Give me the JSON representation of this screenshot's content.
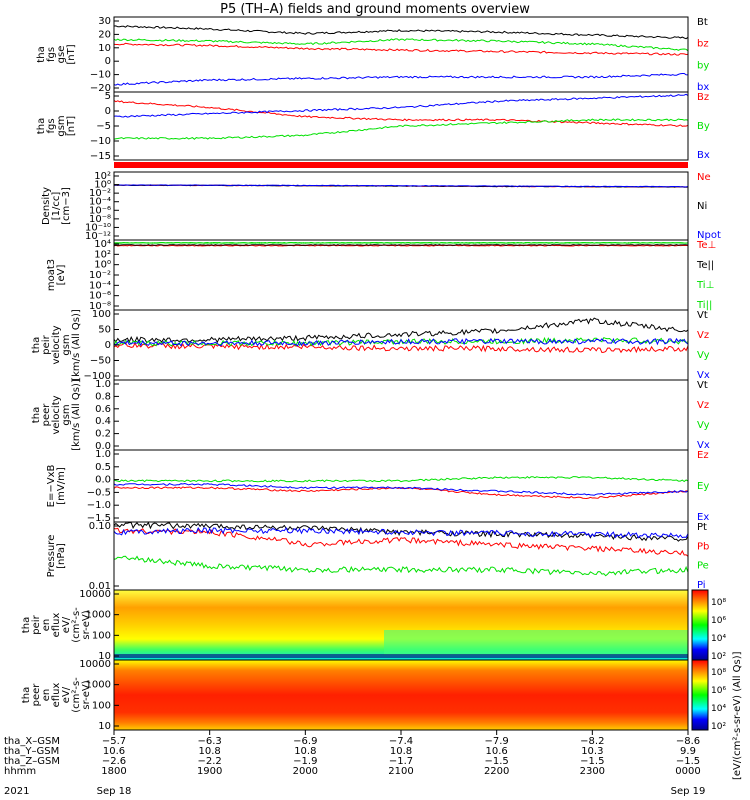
{
  "title": "P5 (TH–A) fields and ground moments overview",
  "colors": {
    "black": "#000000",
    "red": "#ff0000",
    "green": "#00e000",
    "blue": "#0000ff",
    "frame": "#000000"
  },
  "panels": [
    {
      "id": "fgs-gse",
      "ylabel": [
        "tha",
        "fgs",
        "gse",
        "[nT]"
      ],
      "yticks": [
        "30",
        "20",
        "10",
        "0",
        "−10",
        "−20"
      ],
      "legend": [
        {
          "t": "Bt",
          "c": "black"
        },
        {
          "t": "bz",
          "c": "red"
        },
        {
          "t": "by",
          "c": "green"
        },
        {
          "t": "bx",
          "c": "blue"
        }
      ]
    },
    {
      "id": "fgs-gsm",
      "ylabel": [
        "tha",
        "fgs",
        "gsm",
        "[nT]"
      ],
      "yticks": [
        "5",
        "0",
        "−5",
        "−10",
        "−15"
      ],
      "legend": [
        {
          "t": "Bz",
          "c": "red"
        },
        {
          "t": "By",
          "c": "green"
        },
        {
          "t": "Bx",
          "c": "blue"
        }
      ]
    },
    {
      "id": "density",
      "ylabel": [
        "Density",
        "[1/cc]",
        "[cm−3]"
      ],
      "yticks": [
        "10²",
        "10⁰",
        "10⁻²",
        "10⁻⁴",
        "10⁻⁶",
        "10⁻⁸",
        "10⁻¹⁰",
        "10⁻¹²"
      ],
      "legend": [
        {
          "t": "Ne",
          "c": "red"
        },
        {
          "t": "Ni",
          "c": "black"
        },
        {
          "t": "Npot",
          "c": "blue"
        }
      ]
    },
    {
      "id": "temp",
      "ylabel": [
        "moat3",
        "[eV]"
      ],
      "yticks": [
        "10⁴",
        "10²",
        "10⁰",
        "10⁻²",
        "10⁻⁴",
        "10⁻⁶",
        "10⁻⁸"
      ],
      "legend": [
        {
          "t": "Te⊥",
          "c": "red"
        },
        {
          "t": "Te||",
          "c": "black"
        },
        {
          "t": "Ti⊥",
          "c": "green"
        },
        {
          "t": "Ti||",
          "c": "green"
        }
      ]
    },
    {
      "id": "peir-vel",
      "ylabel": [
        "tha",
        "peir",
        "velocity",
        "gsm",
        "[km/s (All Qs)]"
      ],
      "yticks": [
        "100",
        "50",
        "0",
        "−50",
        "−100"
      ],
      "legend": [
        {
          "t": "Vt",
          "c": "black"
        },
        {
          "t": "Vz",
          "c": "red"
        },
        {
          "t": "Vy",
          "c": "green"
        },
        {
          "t": "Vx",
          "c": "blue"
        }
      ]
    },
    {
      "id": "peer-vel",
      "ylabel": [
        "tha",
        "peer",
        "velocity",
        "gsm",
        "[km/s (All Qs)]"
      ],
      "yticks": [
        "1.0",
        "0.8",
        "0.6",
        "0.4",
        "0.2",
        "0.0"
      ],
      "legend": [
        {
          "t": "Vt",
          "c": "black"
        },
        {
          "t": "Vz",
          "c": "red"
        },
        {
          "t": "Vy",
          "c": "green"
        },
        {
          "t": "Vx",
          "c": "blue"
        }
      ]
    },
    {
      "id": "efield",
      "ylabel": [
        "E=−VxB",
        "[mV/m]"
      ],
      "yticks": [
        "1.0",
        "0.5",
        "0.0",
        "−0.5",
        "−1.0",
        "−1.5"
      ],
      "legend": [
        {
          "t": "Ez",
          "c": "red"
        },
        {
          "t": "Ey",
          "c": "green"
        },
        {
          "t": "Ex",
          "c": "blue"
        }
      ]
    },
    {
      "id": "pressure",
      "ylabel": [
        "Pressure",
        "[nPa]"
      ],
      "yticks": [
        "0.10",
        "0.01"
      ],
      "legend": [
        {
          "t": "Pt",
          "c": "black"
        },
        {
          "t": "Pb",
          "c": "red"
        },
        {
          "t": "Pe",
          "c": "green"
        },
        {
          "t": "Pi",
          "c": "blue"
        }
      ]
    },
    {
      "id": "peir-eflux",
      "ylabel": [
        "tha",
        "peir",
        "en",
        "eflux",
        "eV/",
        "(cm²-s-",
        "sr-eV)"
      ],
      "yticks": [
        "10000",
        "1000",
        "100",
        "10"
      ],
      "colorbar": [
        "10⁸",
        "10⁶",
        "10⁴",
        "10²"
      ]
    },
    {
      "id": "peer-eflux",
      "ylabel": [
        "tha",
        "peer",
        "en",
        "eflux",
        "eV/",
        "(cm²-s-",
        "sr-eV)"
      ],
      "yticks": [
        "10000",
        "1000",
        "100",
        "10"
      ],
      "colorbar": [
        "10⁸",
        "10⁶",
        "10⁴",
        "10²"
      ]
    }
  ],
  "colorbar_label": "[eV/(cm²-s-sr-eV) (All Qs)]",
  "xaxis": {
    "rows": [
      {
        "label": "tha_X–GSM",
        "values": [
          "−5.7",
          "−6.3",
          "−6.9",
          "−7.4",
          "−7.9",
          "−8.2",
          "−8.6"
        ]
      },
      {
        "label": "tha_Y–GSM",
        "values": [
          "10.6",
          "10.8",
          "10.8",
          "10.8",
          "10.6",
          "10.3",
          "9.9"
        ]
      },
      {
        "label": "tha_Z–GSM",
        "values": [
          "−2.6",
          "−2.2",
          "−1.9",
          "−1.7",
          "−1.5",
          "−1.5",
          "−1.5"
        ]
      },
      {
        "label": "hhmm",
        "values": [
          "1800",
          "1900",
          "2000",
          "2100",
          "2200",
          "2300",
          "0000"
        ]
      }
    ],
    "year": "2021",
    "date_start": "Sep 18",
    "date_end": "Sep 19"
  },
  "chart_data": {
    "type": "line",
    "title": "P5 (TH–A) fields and ground moments overview",
    "x": [
      "1800",
      "1900",
      "2000",
      "2100",
      "2200",
      "2300",
      "0000"
    ],
    "xlim": [
      "2021-09-18 18:00",
      "2021-09-19 00:00"
    ],
    "panels": [
      {
        "id": "fgs-gse",
        "ylim": [
          -20,
          30
        ],
        "series": [
          {
            "name": "Bt",
            "color": "black",
            "values": [
              24,
              22,
              19,
              21,
              20,
              18,
              16
            ]
          },
          {
            "name": "bz",
            "color": "red",
            "values": [
              12,
              11,
              9,
              8,
              7,
              6,
              5
            ]
          },
          {
            "name": "by",
            "color": "green",
            "values": [
              15,
              14,
              12,
              15,
              14,
              12,
              8
            ]
          },
          {
            "name": "bx",
            "color": "blue",
            "values": [
              -15,
              -12,
              -11,
              -10,
              -10,
              -10,
              -8
            ]
          }
        ]
      },
      {
        "id": "fgs-gsm",
        "ylim": [
          -17,
          5
        ],
        "series": [
          {
            "name": "Bz",
            "color": "red",
            "values": [
              2,
              0,
              -3,
              -4,
              -4,
              -5,
              -6
            ]
          },
          {
            "name": "By",
            "color": "green",
            "values": [
              -10,
              -10,
              -9,
              -6,
              -5,
              -4,
              -4
            ]
          },
          {
            "name": "Bx",
            "color": "blue",
            "values": [
              -3,
              -2,
              -1,
              0,
              2,
              3,
              4
            ]
          }
        ]
      },
      {
        "id": "density",
        "ylim": [
          "10^-13",
          "10^3"
        ],
        "scale": "log",
        "series": [
          {
            "name": "Ne",
            "color": "red",
            "values": [
              0.8,
              0.7,
              0.6,
              0.5,
              0.4,
              0.35,
              0.3
            ]
          },
          {
            "name": "Ni",
            "color": "black",
            "values": [
              0.8,
              0.7,
              0.6,
              0.5,
              0.4,
              0.35,
              0.3
            ]
          },
          {
            "name": "Npot",
            "color": "blue",
            "values": [
              0.9,
              0.8,
              0.7,
              0.6,
              0.5,
              0.4,
              0.35
            ]
          }
        ]
      },
      {
        "id": "temp",
        "ylim": [
          "10^-9",
          "10^4"
        ],
        "scale": "log",
        "series": [
          {
            "name": "Te⊥",
            "color": "red",
            "values": [
              900,
              900,
              900,
              900,
              900,
              900,
              900
            ]
          },
          {
            "name": "Te||",
            "color": "black",
            "values": [
              1200,
              1200,
              1200,
              1200,
              1200,
              1200,
              1200
            ]
          },
          {
            "name": "Ti⊥",
            "color": "green",
            "values": [
              3000,
              3000,
              3000,
              3000,
              3000,
              3000,
              3000
            ]
          },
          {
            "name": "Ti||",
            "color": "green",
            "values": [
              3000,
              3000,
              3000,
              3000,
              3000,
              3000,
              3000
            ]
          }
        ]
      },
      {
        "id": "peir-vel",
        "ylim": [
          -100,
          100
        ],
        "series": [
          {
            "name": "Vt",
            "color": "black",
            "values": [
              15,
              15,
              20,
              30,
              40,
              70,
              40
            ]
          },
          {
            "name": "Vz",
            "color": "red",
            "values": [
              0,
              -5,
              -5,
              -10,
              -10,
              -15,
              -10
            ]
          },
          {
            "name": "Vy",
            "color": "green",
            "values": [
              5,
              5,
              5,
              10,
              10,
              15,
              10
            ]
          },
          {
            "name": "Vx",
            "color": "blue",
            "values": [
              5,
              5,
              5,
              10,
              10,
              10,
              10
            ]
          }
        ]
      },
      {
        "id": "peer-vel",
        "ylim": [
          0,
          1
        ],
        "series": []
      },
      {
        "id": "efield",
        "ylim": [
          -1.1,
          1.0
        ],
        "series": [
          {
            "name": "Ez",
            "color": "red",
            "values": [
              -0.1,
              -0.1,
              -0.2,
              -0.1,
              -0.3,
              -0.4,
              -0.2
            ]
          },
          {
            "name": "Ey",
            "color": "green",
            "values": [
              0.1,
              0.1,
              0.1,
              0.1,
              0.2,
              0.2,
              0.1
            ]
          },
          {
            "name": "Ex",
            "color": "blue",
            "values": [
              0,
              0,
              -0.1,
              -0.1,
              -0.2,
              -0.3,
              -0.2
            ]
          }
        ]
      },
      {
        "id": "pressure",
        "ylim": [
          0.008,
          0.35
        ],
        "scale": "log",
        "series": [
          {
            "name": "Pt",
            "color": "black",
            "values": [
              0.3,
              0.28,
              0.25,
              0.2,
              0.18,
              0.16,
              0.14
            ]
          },
          {
            "name": "Pb",
            "color": "red",
            "values": [
              0.22,
              0.2,
              0.1,
              0.13,
              0.1,
              0.08,
              0.06
            ]
          },
          {
            "name": "Pe",
            "color": "green",
            "values": [
              0.05,
              0.03,
              0.025,
              0.025,
              0.025,
              0.02,
              0.025
            ]
          },
          {
            "name": "Pi",
            "color": "blue",
            "values": [
              0.2,
              0.22,
              0.22,
              0.2,
              0.19,
              0.18,
              0.16
            ]
          }
        ]
      },
      {
        "id": "peir-eflux",
        "type": "heatmap",
        "ylim": [
          5,
          15000
        ],
        "scale": "log"
      },
      {
        "id": "peer-eflux",
        "type": "heatmap",
        "ylim": [
          5,
          15000
        ],
        "scale": "log"
      }
    ]
  }
}
